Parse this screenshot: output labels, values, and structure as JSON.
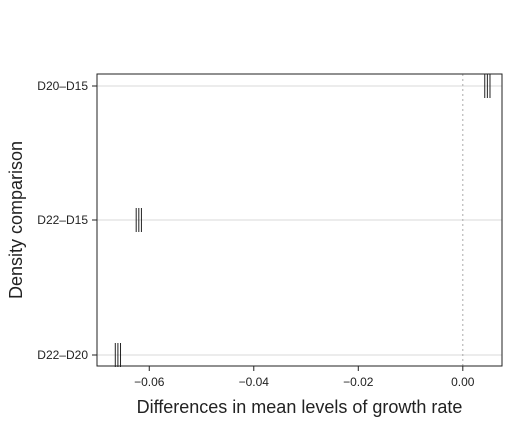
{
  "chart_data": {
    "type": "interval",
    "title": "",
    "xlabel": "Differences in mean levels of growth rate",
    "ylabel": "Density comparison",
    "xlim": [
      -0.07,
      0.0075
    ],
    "x_ticks": [
      -0.06,
      -0.04,
      -0.02,
      0.0
    ],
    "x_tick_labels": [
      "−0.06",
      "−0.04",
      "−0.02",
      "0.00"
    ],
    "categories": [
      "D20–D15",
      "D22–D15",
      "D22–D20"
    ],
    "intervals": [
      {
        "label": "D20–D15",
        "lower": 0.0042,
        "estimate": 0.0047,
        "upper": 0.0052
      },
      {
        "label": "D22–D15",
        "lower": -0.0625,
        "estimate": -0.062,
        "upper": -0.0615
      },
      {
        "label": "D22–D20",
        "lower": -0.0665,
        "estimate": -0.066,
        "upper": -0.0655
      }
    ],
    "reference_line": {
      "x": 0.0,
      "style": "dotted"
    },
    "grid": "horizontal",
    "colors": {
      "axis": "#222222",
      "grid": "#d9d9d9",
      "reference": "#aaaaaa",
      "interval": "#222222"
    }
  }
}
